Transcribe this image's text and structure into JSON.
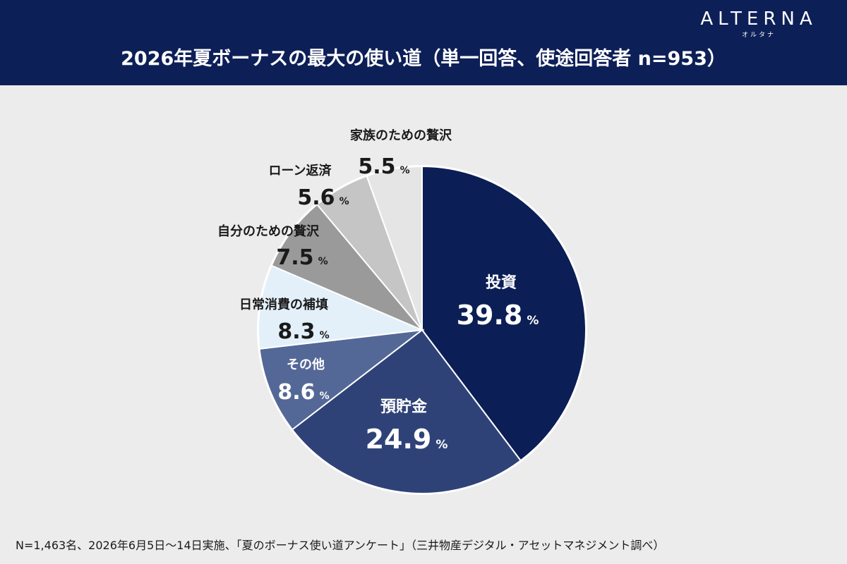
{
  "header": {
    "title": "2026年夏ボーナスの最大の使い道（単一回答、使途回答者 n=953）",
    "brand": "ALTERNA",
    "brand_sub": "オルタナ"
  },
  "footer": {
    "source": "N=1,463名、2026年6月5日〜14日実施、「夏のボーナス使い道アンケート」（三井物産デジタル・アセットマネジメント調べ）"
  },
  "chart_data": {
    "type": "pie",
    "title": "2026年夏ボーナスの最大の使い道（単一回答、使途回答者 n=953）",
    "unit": "%",
    "start_angle_deg": 0,
    "direction": "clockwise",
    "slices": [
      {
        "label": "投資",
        "value": 39.8,
        "value_text": "39.8",
        "color": "#0b1e55",
        "text_color": "#ffffff",
        "label_position": "inside"
      },
      {
        "label": "預貯金",
        "value": 24.9,
        "value_text": "24.9",
        "color": "#2f4278",
        "text_color": "#ffffff",
        "label_position": "inside"
      },
      {
        "label": "その他",
        "value": 8.6,
        "value_text": "8.6",
        "color": "#546897",
        "text_color": "#ffffff",
        "label_position": "inside"
      },
      {
        "label": "日常消費の補填",
        "value": 8.3,
        "value_text": "8.3",
        "color": "#e3f0fa",
        "text_color": "#1a1a1a",
        "label_position": "outside"
      },
      {
        "label": "自分のための贅沢",
        "value": 7.5,
        "value_text": "7.5",
        "color": "#9a9a9a",
        "text_color": "#1a1a1a",
        "label_position": "outside"
      },
      {
        "label": "ローン返済",
        "value": 5.6,
        "value_text": "5.6",
        "color": "#c5c5c5",
        "text_color": "#1a1a1a",
        "label_position": "outside"
      },
      {
        "label": "家族のための贅沢",
        "value": 5.5,
        "value_text": "5.5",
        "color": "#e5e5e5",
        "text_color": "#1a1a1a",
        "label_position": "outside"
      }
    ]
  }
}
